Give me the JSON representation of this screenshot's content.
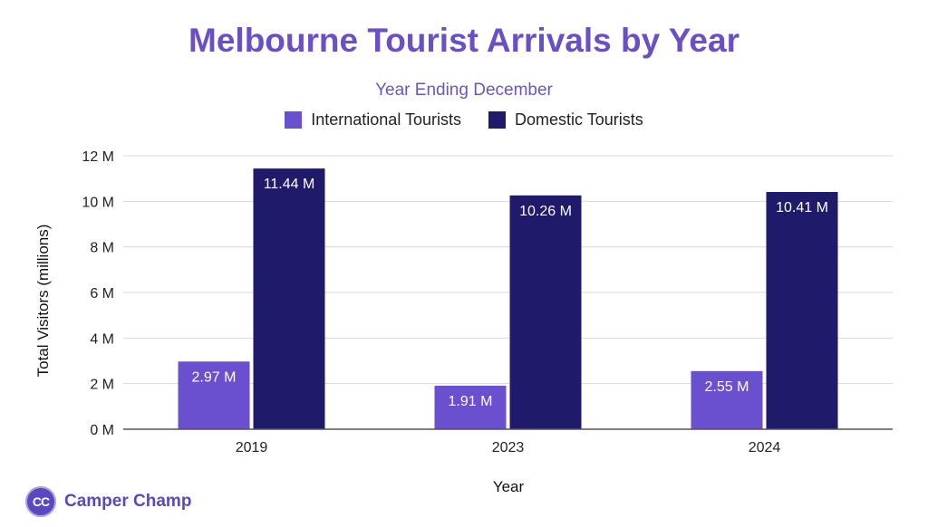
{
  "colors": {
    "title": "#6a4fc7",
    "subtitle": "#6b55c5",
    "international": "#6a4fcf",
    "domestic": "#201a6b",
    "grid": "#d9d9d9",
    "axis": "#555555",
    "brand": "#5a48c0"
  },
  "brand": {
    "initials": "CC",
    "name": "Camper Champ",
    "icon": "cc-logo-circle"
  },
  "chart_data": {
    "type": "bar",
    "title": "Melbourne Tourist Arrivals by Year",
    "subtitle": "Year Ending December",
    "xlabel": "Year",
    "ylabel": "Total Visitors (millions)",
    "categories": [
      "2019",
      "2023",
      "2024"
    ],
    "series": [
      {
        "name": "International Tourists",
        "values": [
          2.97,
          1.91,
          2.55
        ],
        "labels": [
          "2.97 M",
          "1.91 M",
          "2.55 M"
        ]
      },
      {
        "name": "Domestic Tourists",
        "values": [
          11.44,
          10.26,
          10.41
        ],
        "labels": [
          "11.44 M",
          "10.26 M",
          "10.41 M"
        ]
      }
    ],
    "ylim": [
      0,
      12
    ],
    "yticks": [
      0,
      2,
      4,
      6,
      8,
      10,
      12
    ],
    "ytick_labels": [
      "0 M",
      "2 M",
      "4 M",
      "6 M",
      "8 M",
      "10 M",
      "12 M"
    ],
    "grid": true,
    "legend": "top-center"
  }
}
